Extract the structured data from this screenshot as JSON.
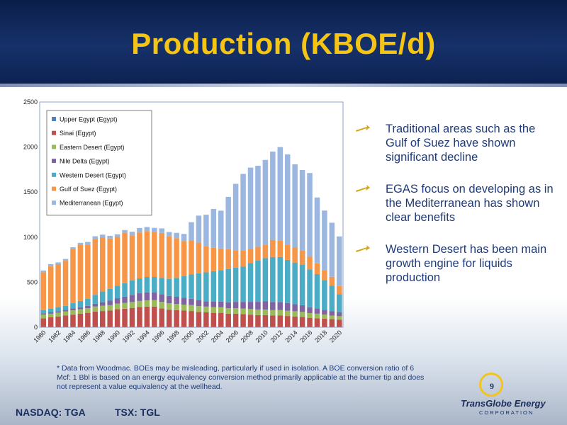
{
  "header": {
    "title": "Production (KBOE/d)"
  },
  "bullets": [
    {
      "text": "Traditional areas such as the Gulf of Suez have shown significant decline"
    },
    {
      "text": "EGAS focus on developing as in the Mediterranean has shown clear benefits"
    },
    {
      "text": "Western Desert has been main growth engine for liquids production"
    }
  ],
  "footnote": "* Data from Woodmac.  BOEs may be misleading, particularly if used in isolation.  A BOE conversion ratio of 6 Mcf: 1 Bbl is based on an energy equivalency conversion method primarily applicable at the burner tip and does not represent a value equivalency at the wellhead.",
  "footer": {
    "nasdaq": "NASDAQ: TGA",
    "tsx": "TSX: TGL",
    "page_number": "9",
    "logo_name": "TransGlobe Energy",
    "logo_sub": "CORPORATION"
  },
  "colors": {
    "title": "#f6c412",
    "header": "#16316a",
    "text": "#1f3b78",
    "upper_egypt": "#4f81bd",
    "sinai": "#c0504d",
    "eastern_desert": "#9bbb59",
    "nile_delta": "#8064a2",
    "western_desert": "#4bacc6",
    "gulf_of_suez": "#f79646",
    "mediterranean": "#9bb7e0"
  },
  "chart_data": {
    "type": "bar",
    "stacked": true,
    "ylim": [
      0,
      2500
    ],
    "yticks": [
      "0",
      "500",
      "1000",
      "1500",
      "2000",
      "2500"
    ],
    "xtick_labels": [
      "1980",
      "1982",
      "1984",
      "1986",
      "1988",
      "1990",
      "1992",
      "1994",
      "1996",
      "1998",
      "2000",
      "2002",
      "2004",
      "2006",
      "2008",
      "2010",
      "2012",
      "2014",
      "2016",
      "2018",
      "2020"
    ],
    "legend_position": "top-left",
    "grid": false,
    "categories": [
      "1980",
      "1981",
      "1982",
      "1983",
      "1984",
      "1985",
      "1986",
      "1987",
      "1988",
      "1989",
      "1990",
      "1991",
      "1992",
      "1993",
      "1994",
      "1995",
      "1996",
      "1997",
      "1998",
      "1999",
      "2000",
      "2001",
      "2002",
      "2003",
      "2004",
      "2005",
      "2006",
      "2007",
      "2008",
      "2009",
      "2010",
      "2011",
      "2012",
      "2013",
      "2014",
      "2015",
      "2016",
      "2017",
      "2018",
      "2019",
      "2020"
    ],
    "series": [
      {
        "name": "Upper Egypt (Egypt)",
        "color": "#4f81bd",
        "values": [
          5,
          5,
          5,
          5,
          5,
          5,
          5,
          5,
          5,
          5,
          5,
          5,
          5,
          5,
          5,
          5,
          5,
          5,
          5,
          5,
          5,
          5,
          5,
          5,
          5,
          5,
          5,
          5,
          5,
          5,
          5,
          5,
          5,
          5,
          5,
          5,
          5,
          5,
          5,
          5,
          5
        ]
      },
      {
        "name": "Sinai (Egypt)",
        "color": "#c0504d",
        "values": [
          95,
          105,
          115,
          125,
          135,
          145,
          155,
          170,
          175,
          180,
          195,
          200,
          210,
          220,
          225,
          225,
          205,
          190,
          185,
          180,
          175,
          165,
          160,
          155,
          155,
          145,
          145,
          140,
          135,
          130,
          130,
          125,
          125,
          120,
          115,
          110,
          100,
          95,
          90,
          85,
          80
        ]
      },
      {
        "name": "Eastern Desert (Egypt)",
        "color": "#9bbb59",
        "values": [
          40,
          40,
          42,
          45,
          48,
          50,
          52,
          55,
          58,
          60,
          62,
          64,
          65,
          67,
          68,
          70,
          72,
          70,
          68,
          66,
          66,
          64,
          64,
          63,
          62,
          62,
          62,
          62,
          62,
          62,
          62,
          60,
          60,
          58,
          58,
          55,
          52,
          50,
          45,
          40,
          38
        ]
      },
      {
        "name": "Nile Delta (Egypt)",
        "color": "#8064a2",
        "values": [
          15,
          15,
          16,
          18,
          20,
          22,
          25,
          30,
          40,
          50,
          60,
          70,
          80,
          85,
          90,
          88,
          85,
          82,
          80,
          75,
          70,
          65,
          60,
          60,
          62,
          65,
          70,
          75,
          80,
          85,
          90,
          90,
          90,
          85,
          80,
          75,
          65,
          60,
          55,
          50,
          45
        ]
      },
      {
        "name": "Western Desert (Egypt)",
        "color": "#4bacc6",
        "values": [
          35,
          40,
          42,
          45,
          60,
          70,
          80,
          100,
          120,
          130,
          140,
          150,
          160,
          165,
          170,
          170,
          180,
          190,
          210,
          240,
          270,
          300,
          320,
          340,
          350,
          370,
          380,
          390,
          430,
          460,
          480,
          500,
          500,
          480,
          460,
          450,
          420,
          380,
          330,
          280,
          200
        ]
      },
      {
        "name": "Gulf of Suez (Egypt)",
        "color": "#f79646",
        "values": [
          420,
          470,
          480,
          500,
          600,
          620,
          600,
          620,
          600,
          560,
          540,
          560,
          500,
          510,
          510,
          500,
          500,
          470,
          440,
          390,
          380,
          340,
          290,
          260,
          240,
          220,
          190,
          180,
          160,
          150,
          150,
          190,
          180,
          170,
          170,
          160,
          140,
          120,
          110,
          100,
          90
        ]
      },
      {
        "name": "Mediterranean (Egypt)",
        "color": "#9bb7e0",
        "values": [
          20,
          25,
          20,
          20,
          20,
          25,
          30,
          30,
          30,
          30,
          30,
          30,
          40,
          50,
          45,
          45,
          50,
          50,
          60,
          80,
          200,
          300,
          350,
          430,
          420,
          580,
          740,
          850,
          900,
          900,
          940,
          980,
          1040,
          1000,
          920,
          890,
          930,
          730,
          660,
          600,
          550
        ]
      }
    ]
  }
}
